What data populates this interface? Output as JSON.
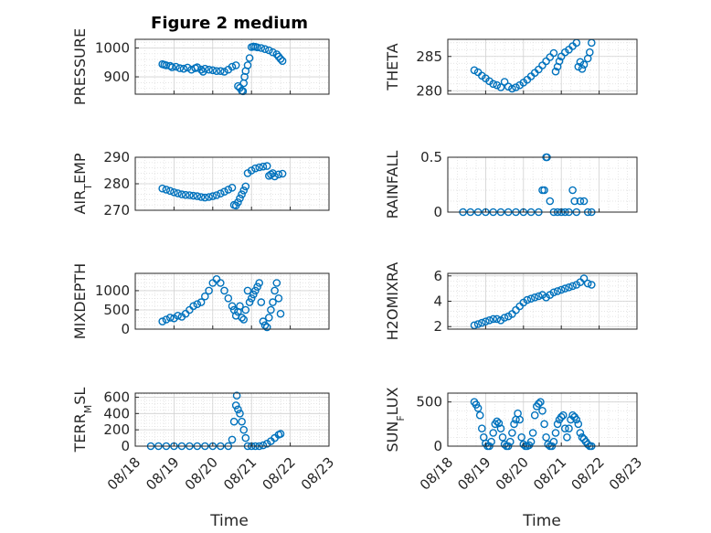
{
  "title": "Figure 2 medium",
  "xlabel": "Time",
  "marker_color": "#0072BD",
  "x_ticks": [
    "08/18",
    "08/19",
    "08/20",
    "08/21",
    "08/22",
    "08/23"
  ],
  "chart_data": [
    {
      "type": "scatter",
      "ylabel": "PRESSURE",
      "ylim": [
        840,
        1030
      ],
      "yticks": [
        900,
        1000
      ],
      "grid": "on",
      "show_x_ticklabels": false,
      "x": [
        0.7,
        0.75,
        0.8,
        0.9,
        0.95,
        1.05,
        1.15,
        1.25,
        1.35,
        1.45,
        1.55,
        1.6,
        1.7,
        1.75,
        1.8,
        1.9,
        2.0,
        2.1,
        2.2,
        2.3,
        2.4,
        2.5,
        2.6,
        2.65,
        2.7,
        2.75,
        2.78,
        2.8,
        2.82,
        2.85,
        2.9,
        2.95,
        3.0,
        3.05,
        3.1,
        3.15,
        3.25,
        3.35,
        3.45,
        3.55,
        3.65,
        3.7,
        3.75,
        3.8
      ],
      "y": [
        944,
        942,
        940,
        938,
        933,
        935,
        930,
        928,
        932,
        925,
        930,
        933,
        925,
        918,
        928,
        925,
        923,
        920,
        920,
        918,
        925,
        935,
        940,
        868,
        862,
        852,
        850,
        878,
        900,
        920,
        940,
        965,
        1003,
        1005,
        1004,
        1002,
        1000,
        996,
        992,
        985,
        978,
        970,
        962,
        955
      ]
    },
    {
      "type": "scatter",
      "ylabel": "THETA",
      "ylim": [
        279.5,
        287.5
      ],
      "yticks": [
        280,
        285
      ],
      "grid": "on",
      "show_x_ticklabels": false,
      "x": [
        0.7,
        0.8,
        0.9,
        1.0,
        1.1,
        1.2,
        1.3,
        1.4,
        1.5,
        1.6,
        1.7,
        1.8,
        1.9,
        2.0,
        2.1,
        2.2,
        2.3,
        2.4,
        2.5,
        2.6,
        2.7,
        2.8,
        2.85,
        2.9,
        2.95,
        3.0,
        3.1,
        3.2,
        3.3,
        3.4,
        3.45,
        3.5,
        3.55,
        3.6,
        3.7,
        3.75,
        3.8
      ],
      "y": [
        283,
        282.7,
        282.2,
        281.8,
        281.4,
        281,
        280.8,
        280.5,
        281.3,
        280.6,
        280.3,
        280.5,
        280.8,
        281.2,
        281.6,
        282.1,
        282.6,
        283.1,
        283.7,
        284.3,
        284.9,
        285.5,
        282.8,
        283.5,
        284.3,
        285,
        285.6,
        286,
        286.5,
        287,
        283.5,
        284.2,
        283.2,
        283.8,
        284.7,
        285.6,
        287
      ]
    },
    {
      "type": "scatter",
      "ylabel": "AIR_TEMP",
      "ylim": [
        270,
        290
      ],
      "yticks": [
        270,
        280,
        290
      ],
      "grid": "on",
      "show_x_ticklabels": false,
      "x": [
        0.7,
        0.8,
        0.9,
        1.0,
        1.1,
        1.2,
        1.3,
        1.4,
        1.5,
        1.6,
        1.7,
        1.8,
        1.9,
        2.0,
        2.1,
        2.2,
        2.3,
        2.4,
        2.5,
        2.55,
        2.6,
        2.65,
        2.7,
        2.75,
        2.8,
        2.85,
        2.9,
        3.0,
        3.1,
        3.2,
        3.3,
        3.4,
        3.45,
        3.5,
        3.55,
        3.6,
        3.7,
        3.8
      ],
      "y": [
        278.2,
        277.8,
        277.3,
        276.8,
        276.4,
        276,
        275.8,
        275.7,
        275.5,
        275.3,
        275,
        274.8,
        275,
        275.3,
        275.7,
        276.3,
        277,
        277.8,
        278.5,
        272,
        271.8,
        273,
        274.5,
        276,
        277.5,
        279,
        284,
        285,
        285.8,
        286.2,
        286.5,
        286.7,
        283,
        283.5,
        284,
        282.8,
        283.5,
        283.8
      ]
    },
    {
      "type": "scatter",
      "ylabel": "RAINFALL",
      "ylim": [
        0,
        0.5
      ],
      "yticks": [
        0,
        0.5
      ],
      "grid": "on",
      "show_x_ticklabels": false,
      "x": [
        0.4,
        0.6,
        0.8,
        1.0,
        1.2,
        1.4,
        1.6,
        1.8,
        2.0,
        2.2,
        2.4,
        2.5,
        2.55,
        2.6,
        2.62,
        2.7,
        2.8,
        2.9,
        3.0,
        3.1,
        3.2,
        3.3,
        3.35,
        3.4,
        3.5,
        3.6,
        3.7,
        3.8
      ],
      "y": [
        0,
        0,
        0,
        0,
        0,
        0,
        0,
        0,
        0,
        0,
        0,
        0.2,
        0.2,
        0.5,
        0.5,
        0.1,
        0,
        0,
        0,
        0,
        0,
        0.2,
        0.1,
        0,
        0.1,
        0.1,
        0,
        0
      ]
    },
    {
      "type": "scatter",
      "ylabel": "MIXDEPTH",
      "ylim": [
        0,
        1450
      ],
      "yticks": [
        0,
        500,
        1000
      ],
      "grid": "on",
      "show_x_ticklabels": false,
      "x": [
        0.7,
        0.8,
        0.9,
        1.0,
        1.1,
        1.2,
        1.3,
        1.4,
        1.5,
        1.6,
        1.7,
        1.8,
        1.9,
        2.0,
        2.1,
        2.2,
        2.3,
        2.4,
        2.5,
        2.55,
        2.6,
        2.65,
        2.7,
        2.75,
        2.8,
        2.85,
        2.9,
        2.95,
        3.0,
        3.05,
        3.1,
        3.15,
        3.2,
        3.25,
        3.3,
        3.35,
        3.4,
        3.45,
        3.5,
        3.55,
        3.6,
        3.65,
        3.7,
        3.75
      ],
      "y": [
        200,
        250,
        300,
        280,
        350,
        320,
        400,
        500,
        600,
        650,
        700,
        850,
        1000,
        1200,
        1300,
        1200,
        1000,
        800,
        600,
        500,
        350,
        450,
        600,
        300,
        250,
        500,
        1000,
        700,
        800,
        900,
        1000,
        1100,
        1200,
        700,
        200,
        100,
        50,
        300,
        500,
        700,
        1000,
        1200,
        800,
        400
      ]
    },
    {
      "type": "scatter",
      "ylabel": "H2OMIXRA",
      "ylim": [
        1.8,
        6.2
      ],
      "yticks": [
        2,
        4,
        6
      ],
      "grid": "on",
      "show_x_ticklabels": false,
      "x": [
        0.7,
        0.8,
        0.9,
        1.0,
        1.1,
        1.2,
        1.3,
        1.4,
        1.5,
        1.6,
        1.7,
        1.8,
        1.9,
        2.0,
        2.1,
        2.2,
        2.3,
        2.4,
        2.5,
        2.6,
        2.7,
        2.8,
        2.9,
        3.0,
        3.1,
        3.2,
        3.3,
        3.4,
        3.5,
        3.6,
        3.7,
        3.8
      ],
      "y": [
        2.1,
        2.2,
        2.3,
        2.4,
        2.5,
        2.6,
        2.6,
        2.5,
        2.7,
        2.8,
        3.0,
        3.3,
        3.6,
        3.9,
        4.1,
        4.2,
        4.3,
        4.4,
        4.5,
        4.3,
        4.5,
        4.7,
        4.8,
        4.9,
        5.0,
        5.1,
        5.2,
        5.3,
        5.5,
        5.8,
        5.4,
        5.3
      ]
    },
    {
      "type": "scatter",
      "ylabel": "TERR_MSL",
      "ylim": [
        0,
        650
      ],
      "yticks": [
        0,
        200,
        400,
        600
      ],
      "grid": "on",
      "show_x_ticklabels": true,
      "x": [
        0.4,
        0.6,
        0.8,
        1.0,
        1.2,
        1.4,
        1.6,
        1.8,
        2.0,
        2.2,
        2.4,
        2.5,
        2.55,
        2.6,
        2.62,
        2.65,
        2.7,
        2.75,
        2.8,
        2.85,
        2.9,
        3.0,
        3.1,
        3.2,
        3.3,
        3.4,
        3.5,
        3.6,
        3.7,
        3.75
      ],
      "y": [
        0,
        0,
        0,
        0,
        0,
        0,
        0,
        0,
        0,
        0,
        0,
        80,
        300,
        500,
        620,
        450,
        400,
        300,
        200,
        100,
        0,
        0,
        0,
        0,
        10,
        30,
        60,
        100,
        140,
        150
      ]
    },
    {
      "type": "scatter",
      "ylabel": "SUN_FLUX",
      "ylim": [
        0,
        600
      ],
      "yticks": [
        0,
        500
      ],
      "grid": "on",
      "show_x_ticklabels": true,
      "x": [
        0.7,
        0.75,
        0.8,
        0.85,
        0.9,
        0.95,
        1.0,
        1.05,
        1.1,
        1.15,
        1.2,
        1.25,
        1.3,
        1.35,
        1.4,
        1.45,
        1.5,
        1.55,
        1.6,
        1.65,
        1.7,
        1.75,
        1.8,
        1.85,
        1.9,
        1.95,
        2.0,
        2.05,
        2.1,
        2.15,
        2.2,
        2.25,
        2.3,
        2.35,
        2.4,
        2.45,
        2.5,
        2.55,
        2.6,
        2.65,
        2.7,
        2.75,
        2.8,
        2.85,
        2.9,
        2.95,
        3.0,
        3.05,
        3.1,
        3.15,
        3.2,
        3.25,
        3.3,
        3.35,
        3.4,
        3.45,
        3.5,
        3.55,
        3.6,
        3.65,
        3.7,
        3.75,
        3.8
      ],
      "y": [
        500,
        470,
        430,
        350,
        200,
        100,
        30,
        0,
        0,
        50,
        150,
        250,
        280,
        260,
        200,
        100,
        20,
        0,
        0,
        50,
        150,
        250,
        300,
        370,
        300,
        100,
        20,
        0,
        0,
        10,
        50,
        150,
        350,
        450,
        480,
        500,
        400,
        250,
        100,
        20,
        0,
        0,
        50,
        150,
        250,
        300,
        330,
        350,
        200,
        100,
        200,
        300,
        350,
        330,
        300,
        250,
        150,
        100,
        80,
        50,
        20,
        0,
        0
      ]
    }
  ]
}
